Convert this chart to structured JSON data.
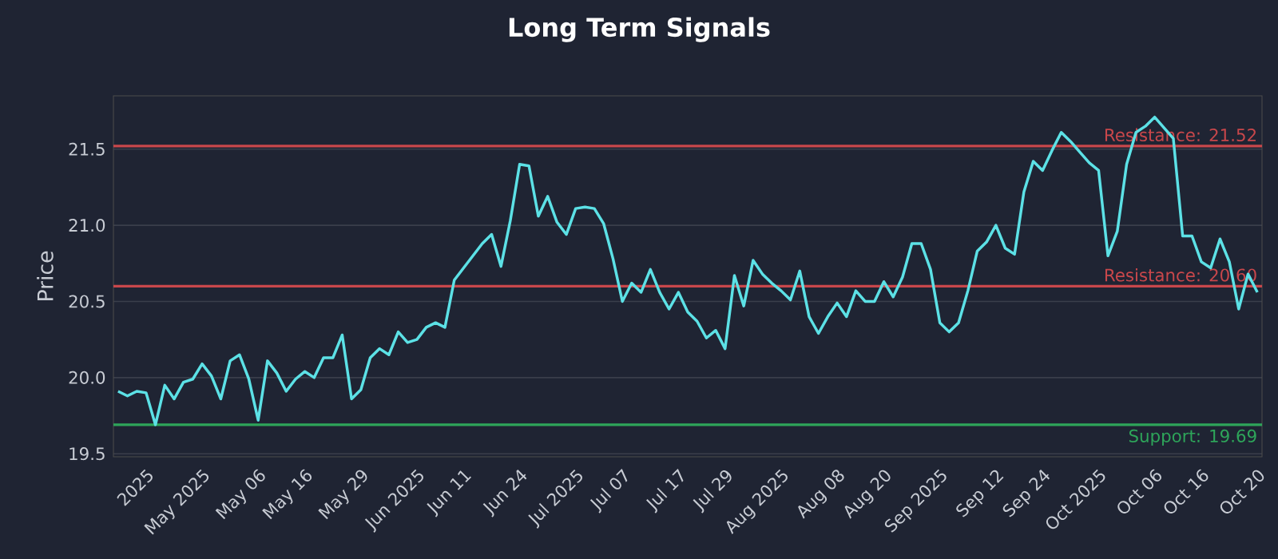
{
  "chart_data": {
    "type": "line",
    "title": "Long Term Signals",
    "ylabel": "Price",
    "categories": [
      null,
      null,
      null,
      "2025",
      null,
      null,
      null,
      null,
      null,
      "May 2025",
      null,
      null,
      null,
      null,
      null,
      "May 06",
      null,
      null,
      null,
      null,
      "May 16",
      null,
      null,
      null,
      null,
      null,
      "May 29",
      null,
      null,
      null,
      null,
      null,
      "Jun 2025",
      null,
      null,
      null,
      null,
      "Jun 11",
      null,
      null,
      null,
      null,
      null,
      "Jun 24",
      null,
      null,
      null,
      null,
      null,
      "Jul 2025",
      null,
      null,
      null,
      null,
      "Jul 07",
      null,
      null,
      null,
      null,
      null,
      "Jul 17",
      null,
      null,
      null,
      null,
      "Jul 29",
      null,
      null,
      null,
      null,
      null,
      "Aug 2025",
      null,
      null,
      null,
      null,
      null,
      "Aug 08",
      null,
      null,
      null,
      null,
      "Aug 20",
      null,
      null,
      null,
      null,
      null,
      "Sep 2025",
      null,
      null,
      null,
      null,
      null,
      "Sep 12",
      null,
      null,
      null,
      null,
      "Sep 24",
      null,
      null,
      null,
      null,
      null,
      "Oct 2025",
      null,
      null,
      null,
      null,
      null,
      "Oct 06",
      null,
      null,
      null,
      null,
      "Oct 16",
      null,
      null,
      null,
      null,
      null,
      "Oct 20"
    ],
    "series": [
      {
        "color": "#5ce1e6",
        "values": [
          19.91,
          19.88,
          19.91,
          19.9,
          19.69,
          19.95,
          19.86,
          19.97,
          19.99,
          20.09,
          20.01,
          19.86,
          20.11,
          20.15,
          19.99,
          19.72,
          20.11,
          20.03,
          19.91,
          19.99,
          20.04,
          20.0,
          20.13,
          20.13,
          20.28,
          19.86,
          19.92,
          20.13,
          20.19,
          20.15,
          20.3,
          20.23,
          20.25,
          20.33,
          20.36,
          20.33,
          20.64,
          20.72,
          20.8,
          20.88,
          20.94,
          20.73,
          21.03,
          21.4,
          21.39,
          21.06,
          21.19,
          21.02,
          20.94,
          21.11,
          21.12,
          21.11,
          21.01,
          20.78,
          20.5,
          20.62,
          20.56,
          20.71,
          20.56,
          20.45,
          20.56,
          20.43,
          20.37,
          20.26,
          20.31,
          20.19,
          20.67,
          20.47,
          20.77,
          20.68,
          20.62,
          20.57,
          20.51,
          20.7,
          20.4,
          20.29,
          20.4,
          20.49,
          20.4,
          20.57,
          20.5,
          20.5,
          20.63,
          20.53,
          20.66,
          20.88,
          20.88,
          20.71,
          20.36,
          20.3,
          20.36,
          20.57,
          20.83,
          20.89,
          21.0,
          20.85,
          20.81,
          21.22,
          21.42,
          21.36,
          21.49,
          21.61,
          21.55,
          21.48,
          21.41,
          21.36,
          20.8,
          20.96,
          21.4,
          21.61,
          21.65,
          21.71,
          21.64,
          21.57,
          20.93,
          20.93,
          20.76,
          20.72,
          20.91,
          20.76,
          20.45,
          20.68,
          20.56
        ]
      }
    ],
    "ylim": [
      19.48,
      21.85
    ],
    "yticks": [
      19.5,
      {
        "value": 20,
        "label": "20.0"
      },
      20.5,
      {
        "value": 21,
        "label": "21.0"
      },
      21.5
    ],
    "grid": "y",
    "ref_lines": [
      {
        "axis": "y",
        "value": 21.52,
        "label": "Resistance: 21.52",
        "color": "#c8474b"
      },
      {
        "axis": "y",
        "value": 20.6,
        "label": "Resistance: 20.60",
        "color": "#c8474b"
      },
      {
        "axis": "y",
        "value": 19.69,
        "label": "Support: 19.69",
        "color": "#2ea55a"
      }
    ]
  }
}
